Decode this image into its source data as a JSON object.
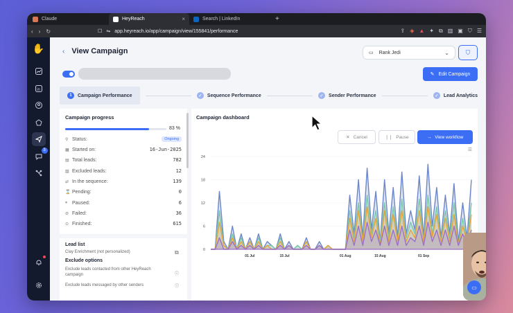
{
  "browser": {
    "tabs": [
      {
        "label": "Claude",
        "color": "#d97757"
      },
      {
        "label": "HeyReach",
        "color": "#ffffff"
      },
      {
        "label": "Search | LinkedIn",
        "color": "#0a66c2"
      }
    ],
    "url": "app.heyreach.io/app/campaign/view/155841/performance",
    "tab_close": "×",
    "new_tab": "+"
  },
  "header": {
    "back": "‹",
    "title": "View Campaign",
    "workspace": "Rank Jedi",
    "edit_button": "Edit Campaign"
  },
  "steps": [
    {
      "num": "1",
      "label": "Campaign Performance",
      "active": true
    },
    {
      "label": "Sequence Performance"
    },
    {
      "label": "Sender Performance"
    },
    {
      "label": "Lead Analytics"
    }
  ],
  "progress": {
    "title": "Campaign progress",
    "percent_label": "83 %",
    "percent": 83,
    "status_label": "Status:",
    "status_value": "Ongoing",
    "stats": [
      {
        "label": "Started on:",
        "value": "16-Jun-2025"
      },
      {
        "label": "Total leads:",
        "value": "782"
      },
      {
        "label": "Excluded leads:",
        "value": "12"
      },
      {
        "label": "In the sequence:",
        "value": "139"
      },
      {
        "label": "Pending:",
        "value": "0"
      },
      {
        "label": "Paused:",
        "value": "6"
      },
      {
        "label": "Failed:",
        "value": "36"
      },
      {
        "label": "Finished:",
        "value": "615"
      }
    ]
  },
  "lead_list": {
    "title": "Lead list",
    "value": "Clay Enrichment (not personalized)",
    "exclude_title": "Exclude options",
    "exclude_1": "Exclude leads contacted from other HeyReach campaign",
    "exclude_2": "Exclude leads messaged by other senders"
  },
  "dashboard": {
    "title": "Campaign dashboard",
    "cancel": "Cancel",
    "pause": "Pause",
    "view_workflow": "View workflow"
  },
  "chart_data": {
    "type": "area",
    "y_ticks": [
      "24",
      "18",
      "12",
      "6",
      "0"
    ],
    "x_ticks": [
      "01 Jul",
      "15 Jul",
      "01 Aug",
      "15 Aug",
      "01 Sep"
    ],
    "ylim": [
      0,
      24
    ],
    "series": [
      {
        "color": "#6b86c9",
        "values": [
          0,
          0,
          15,
          2,
          0,
          6,
          0,
          4,
          0,
          3,
          0,
          4,
          0,
          2,
          1,
          0,
          4,
          0,
          2,
          0,
          1,
          0,
          3,
          0,
          0,
          2,
          0,
          1,
          0,
          0,
          0,
          0,
          14,
          4,
          18,
          3,
          21,
          5,
          15,
          2,
          18,
          4,
          16,
          3,
          20,
          4,
          10,
          5,
          19,
          3,
          22,
          6,
          16,
          3,
          14,
          4,
          17,
          2,
          12,
          3,
          18
        ]
      },
      {
        "color": "#7cc7a8",
        "values": [
          0,
          0,
          10,
          1,
          0,
          4,
          0,
          3,
          0,
          2,
          0,
          3,
          0,
          1,
          1,
          0,
          3,
          0,
          1,
          0,
          1,
          0,
          2,
          0,
          0,
          1,
          0,
          1,
          0,
          0,
          0,
          0,
          10,
          3,
          12,
          2,
          14,
          4,
          10,
          2,
          12,
          3,
          11,
          2,
          13,
          3,
          7,
          4,
          13,
          2,
          14,
          4,
          11,
          2,
          10,
          3,
          12,
          1,
          8,
          2,
          12
        ]
      },
      {
        "color": "#e6a53a",
        "values": [
          0,
          0,
          7,
          1,
          0,
          3,
          0,
          2,
          0,
          2,
          0,
          2,
          0,
          1,
          0,
          0,
          2,
          0,
          1,
          0,
          0,
          0,
          2,
          0,
          0,
          1,
          0,
          1,
          0,
          0,
          0,
          0,
          8,
          2,
          10,
          2,
          11,
          3,
          8,
          1,
          10,
          2,
          9,
          2,
          10,
          2,
          5,
          3,
          10,
          2,
          11,
          3,
          9,
          2,
          8,
          2,
          9,
          1,
          6,
          2,
          9
        ]
      },
      {
        "color": "#9b6fc7",
        "values": [
          0,
          0,
          3,
          0,
          0,
          2,
          0,
          1,
          0,
          1,
          0,
          1,
          0,
          0,
          0,
          0,
          1,
          0,
          1,
          0,
          0,
          0,
          1,
          0,
          0,
          1,
          0,
          0,
          0,
          0,
          0,
          0,
          5,
          1,
          6,
          1,
          7,
          2,
          5,
          1,
          6,
          1,
          5,
          1,
          6,
          1,
          3,
          2,
          6,
          1,
          7,
          2,
          5,
          1,
          5,
          1,
          6,
          1,
          4,
          1,
          5
        ]
      }
    ]
  }
}
